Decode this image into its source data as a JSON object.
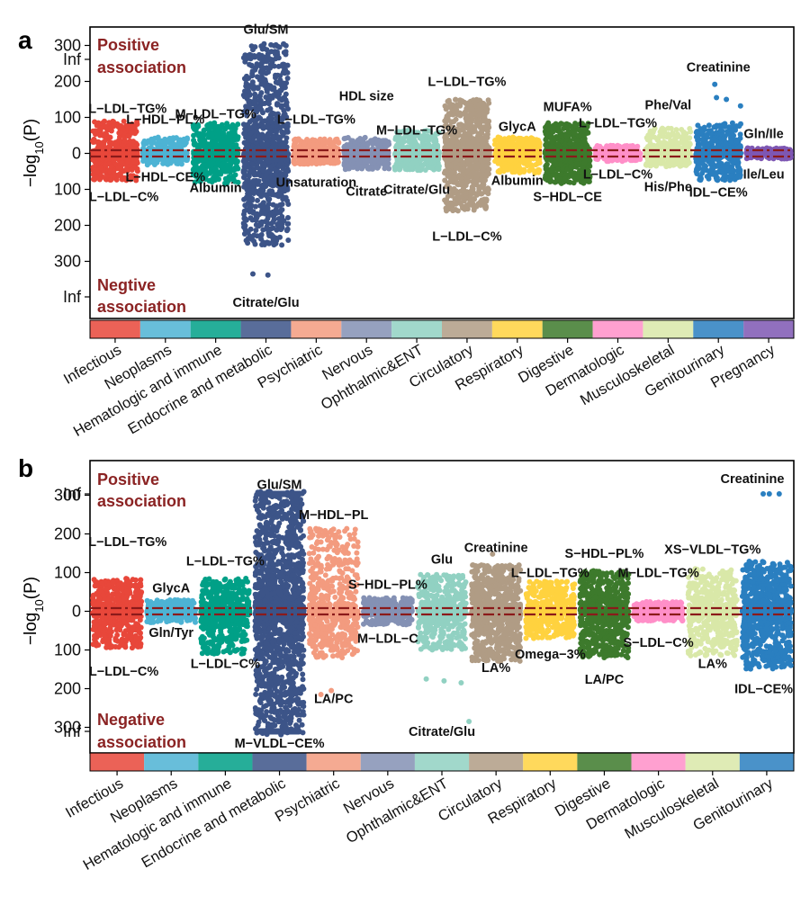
{
  "colors": {
    "Infectious": "#e8473a",
    "Neoplasms": "#4db3d4",
    "Hematologic and immune": "#00a087",
    "Endocrine and metabolic": "#3c5488",
    "Psychiatric": "#f39b7f",
    "Nervous": "#8491b4",
    "Ophthalmic&ENT": "#91d1c2",
    "Circulatory": "#b09c85",
    "Respiratory": "#ffd23f",
    "Digestive": "#3d7a2c",
    "Dermatologic": "#ff8fc8",
    "Musculoskeletal": "#d9e8a8",
    "Genitourinary": "#2a7fc0",
    "Pregnancy": "#7e57b3",
    "association_text": "#8b2323",
    "threshold_line": "#8b1a1a"
  },
  "chart_data": [
    {
      "panel": "a",
      "type": "scatter",
      "description_kind": "strip",
      "ylabel": "−log₁₀(P)",
      "ytick_labels": [
        "Inf",
        "300",
        "200",
        "100",
        "0",
        "100",
        "200",
        "300",
        "Inf"
      ],
      "ytick_values": [
        360,
        300,
        200,
        100,
        0,
        -100,
        -200,
        -300,
        -360
      ],
      "ylim": [
        -400,
        400
      ],
      "positive_label": [
        "Positive",
        "association"
      ],
      "negative_label": [
        "Negtive",
        "association"
      ],
      "categories": [
        "Infectious",
        "Neoplasms",
        "Hematologic and immune",
        "Endocrine and metabolic",
        "Psychiatric",
        "Nervous",
        "Ophthalmic&ENT",
        "Circulatory",
        "Respiratory",
        "Digestive",
        "Dermatologic",
        "Musculoskeletal",
        "Genitourinary",
        "Pregnancy"
      ],
      "series": [
        {
          "category": "Infectious",
          "n": 520,
          "pos_max": 90,
          "neg_max": 75
        },
        {
          "category": "Neoplasms",
          "n": 320,
          "pos_max": 45,
          "neg_max": 32
        },
        {
          "category": "Hematologic and immune",
          "n": 520,
          "pos_max": 85,
          "neg_max": 85
        },
        {
          "category": "Endocrine and metabolic",
          "n": 1050,
          "pos_max": 305,
          "neg_max": 255,
          "pos_outliers": [
            290,
            292,
            295
          ],
          "neg_outliers": [
            -335,
            -338
          ]
        },
        {
          "category": "Psychiatric",
          "n": 480,
          "pos_max": 40,
          "neg_max": 30
        },
        {
          "category": "Nervous",
          "n": 380,
          "pos_max": 45,
          "neg_max": 45
        },
        {
          "category": "Ophthalmic&ENT",
          "n": 430,
          "pos_max": 65,
          "neg_max": 48
        },
        {
          "category": "Circulatory",
          "n": 850,
          "pos_max": 150,
          "neg_max": 160
        },
        {
          "category": "Respiratory",
          "n": 450,
          "pos_max": 45,
          "neg_max": 55
        },
        {
          "category": "Digestive",
          "n": 650,
          "pos_max": 85,
          "neg_max": 85
        },
        {
          "category": "Dermatologic",
          "n": 320,
          "pos_max": 22,
          "neg_max": 22
        },
        {
          "category": "Musculoskeletal",
          "n": 380,
          "pos_max": 70,
          "neg_max": 38
        },
        {
          "category": "Genitourinary",
          "n": 460,
          "pos_max": 85,
          "neg_max": 75,
          "pos_outliers": [
            192,
            155,
            150,
            132
          ]
        },
        {
          "category": "Pregnancy",
          "n": 280,
          "pos_max": 15,
          "neg_max": 15
        }
      ],
      "annotations": [
        {
          "text": "L−LDL−TG%",
          "category": "Infectious",
          "y": 125
        },
        {
          "text": "L−HDL−PL%",
          "category": "Neoplasms",
          "y": 95
        },
        {
          "text": "L−HDL−CE%",
          "category": "Neoplasms",
          "y": -65
        },
        {
          "text": "L−LDL−C%",
          "category": "Infectious",
          "y": -120
        },
        {
          "text": "M−LDL−TG%",
          "category": "Hematologic and immune",
          "y": 110
        },
        {
          "text": "Albumin",
          "category": "Hematologic and immune",
          "y": -95
        },
        {
          "text": "Glu/SM",
          "category": "Endocrine and metabolic",
          "y": 345
        },
        {
          "text": "Citrate/Glu",
          "category": "Endocrine and metabolic",
          "y": -375
        },
        {
          "text": "L−LDL−TG%",
          "category": "Psychiatric",
          "y": 95
        },
        {
          "text": "Unsaturation",
          "category": "Psychiatric",
          "y": -80
        },
        {
          "text": "HDL size",
          "category": "Nervous",
          "y": 160
        },
        {
          "text": "Citrate",
          "category": "Nervous",
          "y": -105
        },
        {
          "text": "M−LDL−TG%",
          "category": "Ophthalmic&ENT",
          "y": 65
        },
        {
          "text": "Citrate/Glu",
          "category": "Ophthalmic&ENT",
          "y": -100
        },
        {
          "text": "L−LDL−TG%",
          "category": "Circulatory",
          "y": 200
        },
        {
          "text": "L−LDL−C%",
          "category": "Circulatory",
          "y": -230
        },
        {
          "text": "GlycA",
          "category": "Respiratory",
          "y": 75
        },
        {
          "text": "Albumin",
          "category": "Respiratory",
          "y": -75
        },
        {
          "text": "MUFA%",
          "category": "Digestive",
          "y": 130
        },
        {
          "text": "S−HDL−CE",
          "category": "Digestive",
          "y": -120
        },
        {
          "text": "L−LDL−TG%",
          "category": "Dermatologic",
          "y": 85
        },
        {
          "text": "L−LDL−C%",
          "category": "Dermatologic",
          "y": -58
        },
        {
          "text": "Phe/Val",
          "category": "Musculoskeletal",
          "y": 135
        },
        {
          "text": "His/Phe",
          "category": "Musculoskeletal",
          "y": -92
        },
        {
          "text": "Creatinine",
          "category": "Genitourinary",
          "y": 240
        },
        {
          "text": "IDL−CE%",
          "category": "Genitourinary",
          "y": -108
        },
        {
          "text": "Gln/Ile",
          "category": "Pregnancy",
          "y": 55
        },
        {
          "text": "Ile/Leu",
          "category": "Pregnancy",
          "y": -58
        }
      ]
    },
    {
      "panel": "b",
      "type": "scatter",
      "description_kind": "strip",
      "ylabel": "−log₁₀(P)",
      "ytick_labels": [
        "Inf",
        "300",
        "200",
        "100",
        "0",
        "100",
        "200",
        "300",
        "Inf"
      ],
      "ytick_values": [
        360,
        300,
        200,
        100,
        0,
        -100,
        -200,
        -300,
        -360
      ],
      "ylim": [
        -400,
        400
      ],
      "positive_label": [
        "Positive",
        "association"
      ],
      "negative_label": [
        "Negative",
        "association"
      ],
      "categories": [
        "Infectious",
        "Neoplasms",
        "Hematologic and immune",
        "Endocrine and metabolic",
        "Psychiatric",
        "Nervous",
        "Ophthalmic&ENT",
        "Circulatory",
        "Respiratory",
        "Digestive",
        "Dermatologic",
        "Musculoskeletal",
        "Genitourinary"
      ],
      "series": [
        {
          "category": "Infectious",
          "n": 620,
          "pos_max": 85,
          "neg_max": 95
        },
        {
          "category": "Neoplasms",
          "n": 320,
          "pos_max": 30,
          "neg_max": 30
        },
        {
          "category": "Hematologic and immune",
          "n": 620,
          "pos_max": 85,
          "neg_max": 110
        },
        {
          "category": "Endocrine and metabolic",
          "n": 1500,
          "pos_max": 310,
          "neg_max": 320,
          "ceiling_pos": 360,
          "ceiling_neg": -360
        },
        {
          "category": "Psychiatric",
          "n": 650,
          "pos_max": 215,
          "neg_max": 120,
          "neg_outliers": [
            -215,
            -205
          ]
        },
        {
          "category": "Nervous",
          "n": 350,
          "pos_max": 35,
          "neg_max": 35
        },
        {
          "category": "Ophthalmic&ENT",
          "n": 520,
          "pos_max": 95,
          "neg_max": 100,
          "neg_outliers": [
            -175,
            -180,
            -185,
            -285
          ]
        },
        {
          "category": "Circulatory",
          "n": 880,
          "pos_max": 120,
          "neg_max": 130,
          "pos_outliers": [
            148
          ]
        },
        {
          "category": "Respiratory",
          "n": 520,
          "pos_max": 80,
          "neg_max": 70
        },
        {
          "category": "Digestive",
          "n": 780,
          "pos_max": 105,
          "neg_max": 120
        },
        {
          "category": "Dermatologic",
          "n": 320,
          "pos_max": 25,
          "neg_max": 25
        },
        {
          "category": "Musculoskeletal",
          "n": 520,
          "pos_max": 110,
          "neg_max": 115
        },
        {
          "category": "Genitourinary",
          "n": 900,
          "pos_max": 130,
          "neg_max": 150,
          "pos_outliers": [
            360,
            360,
            360
          ]
        }
      ],
      "annotations": [
        {
          "text": "L−LDL−TG%",
          "category": "Infectious",
          "y": 180
        },
        {
          "text": "L−LDL−C%",
          "category": "Infectious",
          "y": -155
        },
        {
          "text": "GlycA",
          "category": "Neoplasms",
          "y": 60
        },
        {
          "text": "Gln/Tyr",
          "category": "Neoplasms",
          "y": -55
        },
        {
          "text": "L−LDL−TG%",
          "category": "Hematologic and immune",
          "y": 130
        },
        {
          "text": "L−LDL−C%",
          "category": "Hematologic and immune",
          "y": -135
        },
        {
          "text": "Glu/SM",
          "category": "Endocrine and metabolic",
          "y": 385
        },
        {
          "text": "M−VLDL−CE%",
          "category": "Endocrine and metabolic",
          "y": -390
        },
        {
          "text": "M−HDL−PL",
          "category": "Psychiatric",
          "y": 250
        },
        {
          "text": "LA/PC",
          "category": "Psychiatric",
          "y": -225
        },
        {
          "text": "S−HDL−PL%",
          "category": "Nervous",
          "y": 70
        },
        {
          "text": "M−LDL−C",
          "category": "Nervous",
          "y": -70
        },
        {
          "text": "Glu",
          "category": "Ophthalmic&ENT",
          "y": 135
        },
        {
          "text": "Citrate/Glu",
          "category": "Ophthalmic&ENT",
          "y": -310
        },
        {
          "text": "Creatinine",
          "category": "Circulatory",
          "y": 165
        },
        {
          "text": "LA%",
          "category": "Circulatory",
          "y": -145
        },
        {
          "text": "L−LDL−TG%",
          "category": "Respiratory",
          "y": 100
        },
        {
          "text": "Omega−3%",
          "category": "Respiratory",
          "y": -110
        },
        {
          "text": "S−HDL−PL%",
          "category": "Digestive",
          "y": 150
        },
        {
          "text": "LA/PC",
          "category": "Digestive",
          "y": -175
        },
        {
          "text": "M−LDL−TG%",
          "category": "Dermatologic",
          "y": 100
        },
        {
          "text": "S−LDL−C%",
          "category": "Dermatologic",
          "y": -80
        },
        {
          "text": "XS−VLDL−TG%",
          "category": "Musculoskeletal",
          "y": 160
        },
        {
          "text": "LA%",
          "category": "Musculoskeletal",
          "y": -135
        },
        {
          "text": "Creatinine",
          "category": "Genitourinary",
          "y": 400
        },
        {
          "text": "IDL−CE%",
          "category": "Genitourinary",
          "y": -200
        }
      ]
    }
  ]
}
